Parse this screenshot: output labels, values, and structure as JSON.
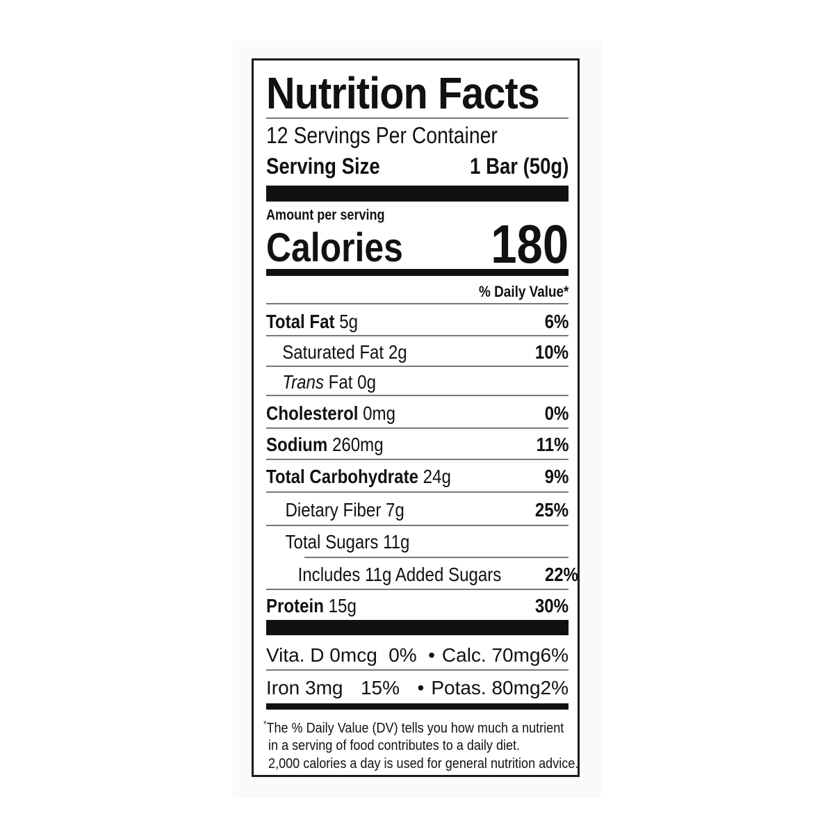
{
  "title": "Nutrition Facts",
  "servings_per_container": "12 Servings Per Container",
  "serving_size": {
    "label": "Serving Size",
    "value": "1 Bar (50g)"
  },
  "amount_per_serving": "Amount per serving",
  "calories": {
    "label": "Calories",
    "value": "180"
  },
  "dv_header": "% Daily Value*",
  "nutrients": [
    {
      "name": "Total Fat",
      "amount": "5g",
      "dv": "6%"
    },
    {
      "name": "Saturated Fat",
      "amount": "2g",
      "dv": "10%"
    },
    {
      "name": "Trans",
      "name_rest": "Fat",
      "amount": "0g",
      "dv": ""
    },
    {
      "name": "Cholesterol",
      "amount": "0mg",
      "dv": "0%"
    },
    {
      "name": "Sodium",
      "amount": "260mg",
      "dv": "11%"
    },
    {
      "name": "Total Carbohydrate",
      "amount": "24g",
      "dv": "9%"
    },
    {
      "name": "Dietary Fiber",
      "amount": "7g",
      "dv": "25%"
    },
    {
      "name": "Total Sugars",
      "amount": "11g",
      "dv": ""
    },
    {
      "name": "Includes 11g Added Sugars",
      "amount": "",
      "dv": "22%"
    },
    {
      "name": "Protein",
      "amount": "15g",
      "dv": "30%"
    }
  ],
  "micros": [
    {
      "a_name": "Vita. D 0mcg",
      "a_dv": "0%",
      "b_name": "Calc. 70mg",
      "b_dv": "6%"
    },
    {
      "a_name": "Iron 3mg",
      "a_dv": "15%",
      "b_name": "Potas. 80mg",
      "b_dv": "2%"
    }
  ],
  "bullet": "•",
  "footnote": {
    "asterisk": "*",
    "line1": "The % Daily Value (DV) tells you how much a nutrient",
    "line2": "in a serving of food contributes to a daily diet.",
    "line3": "2,000 calories a day is used for general nutrition advice."
  }
}
